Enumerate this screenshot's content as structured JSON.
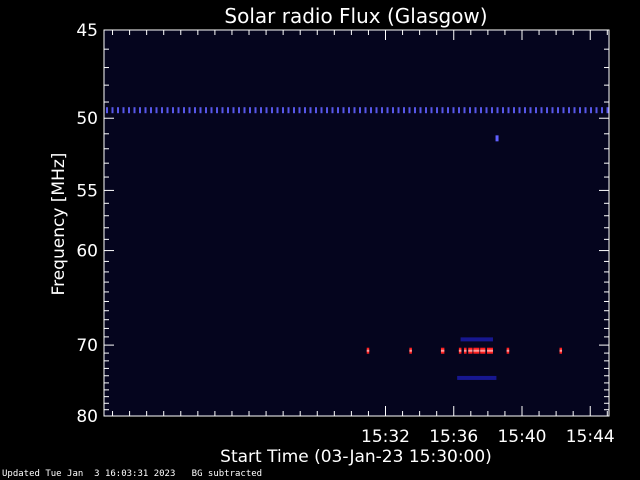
{
  "chart_data": {
    "type": "heatmap",
    "title": "Solar radio Flux (Glasgow)",
    "xlabel": "Start Time (03-Jan-23 15:30:00)",
    "ylabel": "Frequency [MHz]",
    "x_range_minutes": [
      15.5,
      45.1
    ],
    "x_ticks": [
      {
        "minute": 32,
        "label": "15:32"
      },
      {
        "minute": 36,
        "label": "15:36"
      },
      {
        "minute": 40,
        "label": "15:40"
      },
      {
        "minute": 44,
        "label": "15:44"
      }
    ],
    "y_scale": "reciprocal",
    "y_range_mhz": [
      45,
      80
    ],
    "y_ticks": [
      45,
      50,
      55,
      60,
      70,
      80
    ],
    "y_tick_labels": [
      "45",
      "50",
      "55",
      "60",
      "70",
      "80"
    ],
    "background_color": "#05051e",
    "colors": {
      "weak": "#2020c0",
      "medium": "#6060ff",
      "strong": "#ff2020",
      "peak": "#ffb0b0"
    },
    "features": [
      {
        "name": "constant-emission-line",
        "freq_mhz": 49.5,
        "minute_start": 15.5,
        "minute_end": 45.1,
        "intensity": "medium"
      },
      {
        "name": "isolated-spike",
        "freq_mhz": 51.3,
        "minute_start": 38.45,
        "minute_end": 38.55,
        "intensity": "medium"
      },
      {
        "name": "burst",
        "freq_mhz": 70.7,
        "minute_start": 30.9,
        "minute_end": 31.0,
        "intensity": "strong"
      },
      {
        "name": "burst",
        "freq_mhz": 70.7,
        "minute_start": 33.4,
        "minute_end": 33.5,
        "intensity": "strong"
      },
      {
        "name": "burst",
        "freq_mhz": 70.7,
        "minute_start": 35.25,
        "minute_end": 35.45,
        "intensity": "strong"
      },
      {
        "name": "burst",
        "freq_mhz": 70.7,
        "minute_start": 36.3,
        "minute_end": 36.45,
        "intensity": "strong"
      },
      {
        "name": "burst",
        "freq_mhz": 70.7,
        "minute_start": 36.6,
        "minute_end": 36.75,
        "intensity": "strong"
      },
      {
        "name": "burst",
        "freq_mhz": 70.7,
        "minute_start": 36.85,
        "minute_end": 37.1,
        "intensity": "strong"
      },
      {
        "name": "burst",
        "freq_mhz": 70.7,
        "minute_start": 37.15,
        "minute_end": 37.5,
        "intensity": "strong"
      },
      {
        "name": "burst",
        "freq_mhz": 70.7,
        "minute_start": 37.55,
        "minute_end": 37.85,
        "intensity": "strong"
      },
      {
        "name": "burst",
        "freq_mhz": 70.7,
        "minute_start": 37.95,
        "minute_end": 38.3,
        "intensity": "strong"
      },
      {
        "name": "burst",
        "freq_mhz": 70.7,
        "minute_start": 39.1,
        "minute_end": 39.25,
        "intensity": "strong"
      },
      {
        "name": "burst",
        "freq_mhz": 70.7,
        "minute_start": 42.2,
        "minute_end": 42.28,
        "intensity": "strong"
      },
      {
        "name": "faint-band",
        "freq_mhz": 69.3,
        "minute_start": 36.4,
        "minute_end": 38.3,
        "intensity": "weak"
      },
      {
        "name": "faint-band",
        "freq_mhz": 74.3,
        "minute_start": 36.2,
        "minute_end": 38.5,
        "intensity": "weak"
      }
    ]
  },
  "footer": {
    "updated": "Updated Tue Jan  3 16:03:31 2023",
    "note": "BG subtracted"
  }
}
